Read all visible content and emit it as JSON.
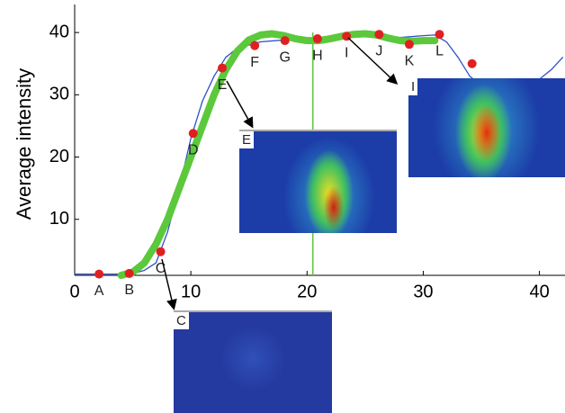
{
  "chart_data": {
    "type": "line",
    "ylabel": "Average intensity",
    "xlim": [
      0,
      42.2
    ],
    "ylim": [
      1,
      44.5
    ],
    "xticks": [
      0,
      10,
      20,
      30,
      40
    ],
    "yticks": [
      10,
      20,
      30,
      40
    ],
    "series": [
      {
        "color": "#3050c8",
        "x": [
          0,
          4,
          5,
          6,
          7,
          8,
          9,
          10,
          11,
          12,
          13,
          14,
          16,
          18,
          20,
          22,
          24,
          26,
          28,
          30,
          31,
          32,
          33,
          34,
          35,
          36,
          37,
          38,
          39,
          40,
          41,
          42
        ],
        "y": [
          1.2,
          1.2,
          1.3,
          1.8,
          3,
          8,
          15,
          23,
          29,
          33,
          36,
          37.5,
          38.5,
          38.8,
          39,
          39.3,
          39.5,
          39.6,
          39.2,
          39.5,
          39.6,
          38.5,
          36,
          33,
          31.5,
          31,
          31,
          31.5,
          32,
          32.5,
          34,
          36
        ]
      },
      {
        "color": "#5cc83c",
        "x": [
          4,
          5,
          6,
          7,
          8,
          9,
          10,
          11,
          12,
          13,
          14,
          15,
          16,
          17,
          18,
          19,
          20,
          21,
          22,
          23,
          24,
          25,
          26,
          27,
          28,
          29,
          30,
          31
        ],
        "y": [
          1,
          1.5,
          3,
          6,
          10,
          15,
          20,
          25,
          30,
          34,
          37,
          38.8,
          39.6,
          39.8,
          39.5,
          39,
          38.7,
          38.7,
          39,
          39.4,
          39.7,
          39.8,
          39.6,
          39.1,
          38.7,
          38.6,
          38.7,
          38.7
        ]
      }
    ],
    "points": {
      "color": "#e02020",
      "x": [
        2.1,
        4.7,
        7.4,
        10.2,
        12.7,
        15.5,
        18.1,
        20.9,
        23.4,
        26.2,
        28.8,
        31.4,
        34.2
      ],
      "y": [
        1.2,
        1.3,
        4.8,
        23.8,
        34.3,
        37.9,
        38.7,
        39,
        39.4,
        39.7,
        38.1,
        39.7,
        35
      ],
      "labels": [
        "A",
        "B",
        "C",
        "D",
        "E",
        "F",
        "G",
        "H",
        "I",
        "J",
        "K",
        "L",
        null
      ]
    },
    "marker_x": 20.5,
    "insets": [
      {
        "label": "E"
      },
      {
        "label": "I"
      },
      {
        "label": "C"
      }
    ]
  }
}
